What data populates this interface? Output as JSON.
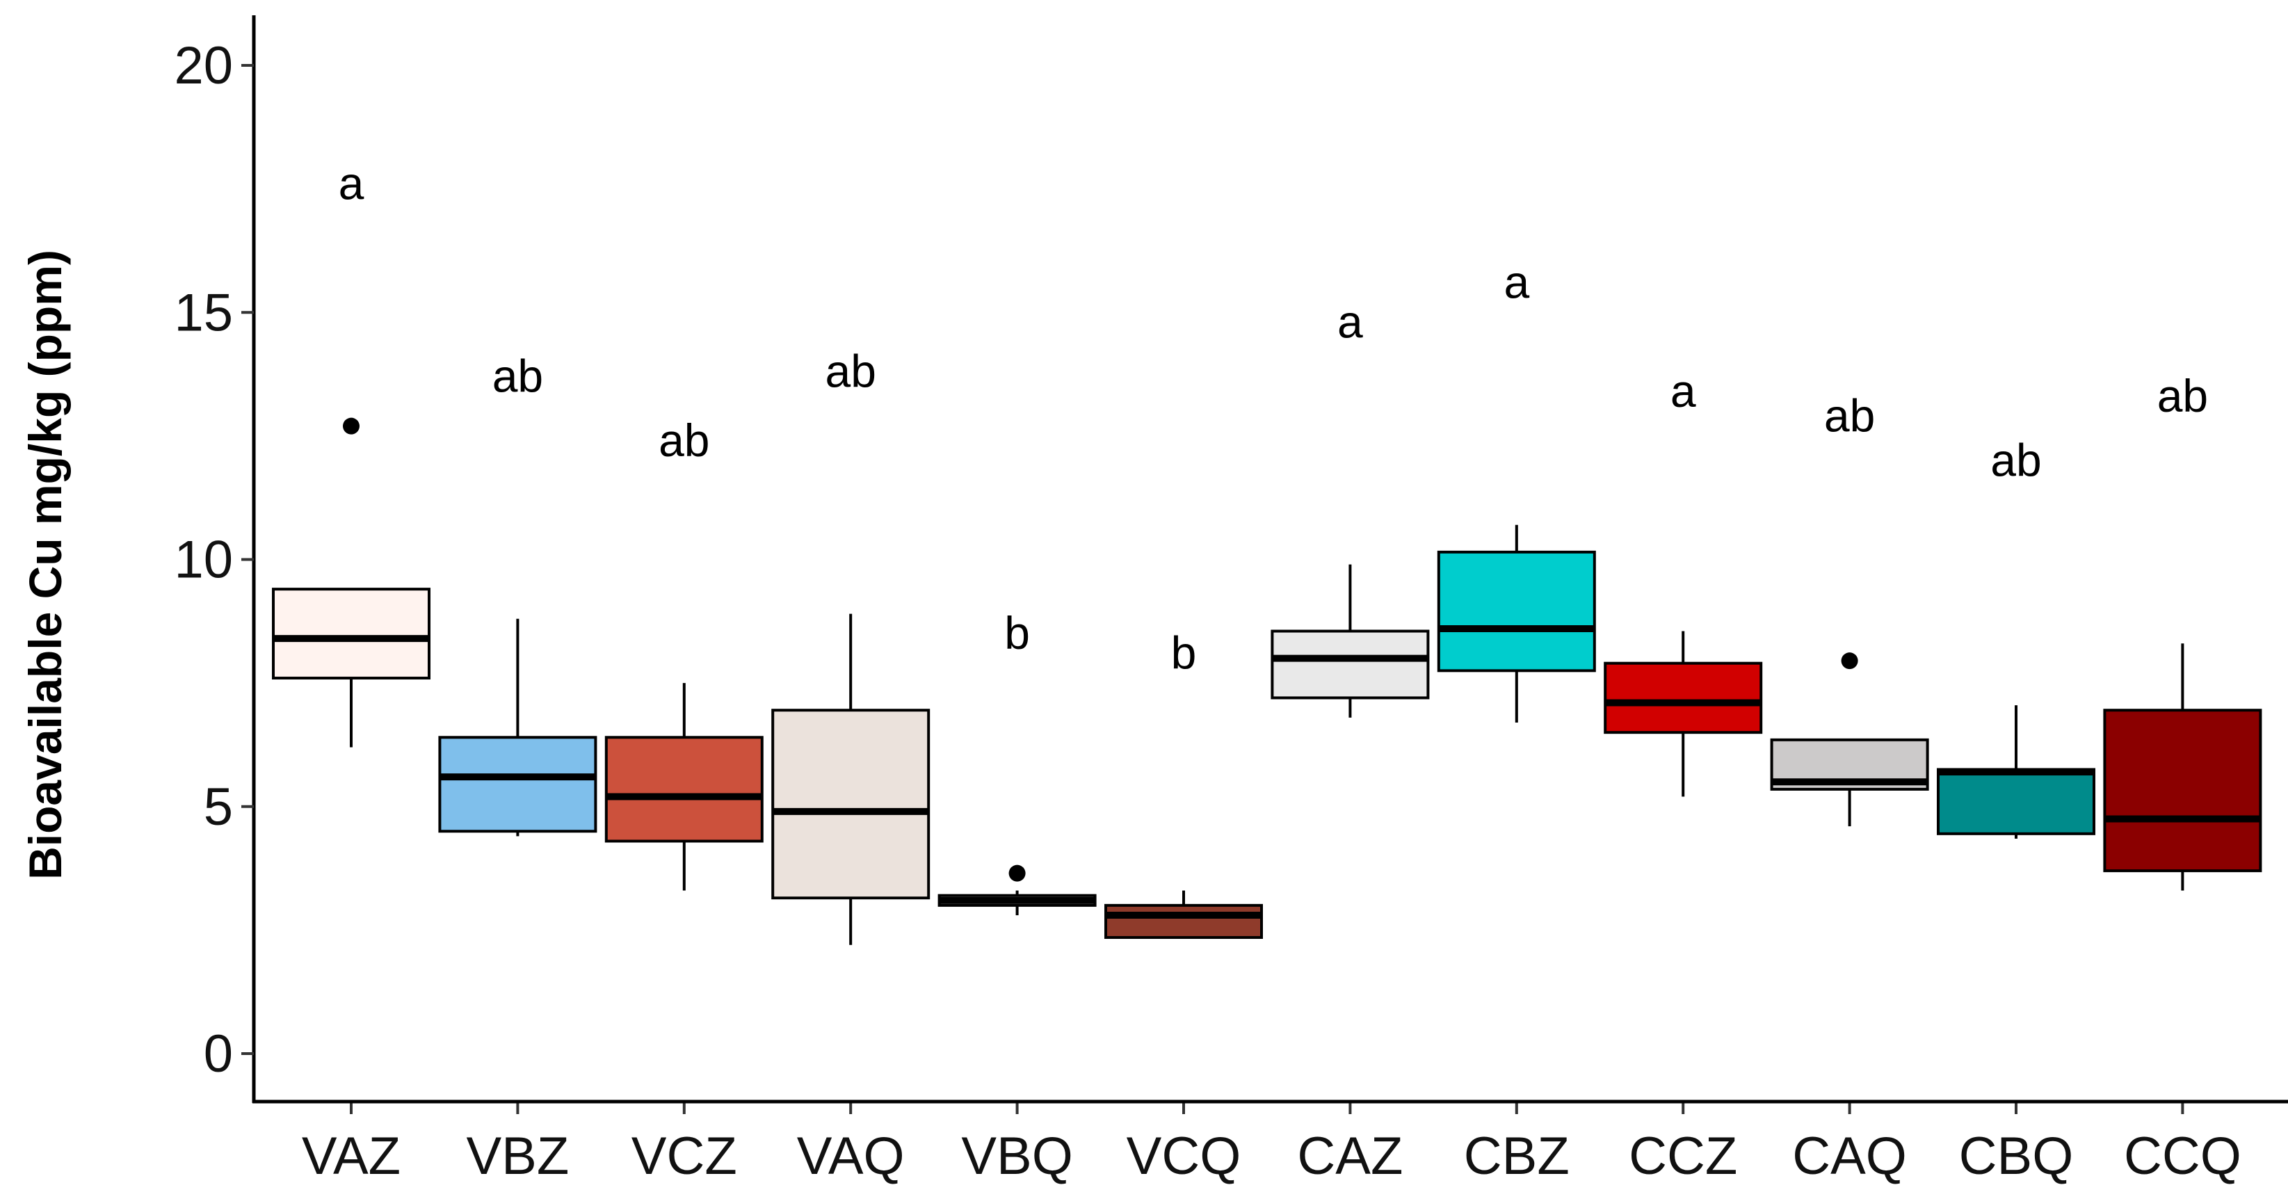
{
  "chart_data": {
    "type": "boxplot",
    "title": "",
    "xlabel": "",
    "ylabel": "Bioavailable Cu mg/kg (ppm)",
    "ylim": [
      0,
      20
    ],
    "yticks": [
      0,
      5,
      10,
      15,
      20
    ],
    "grid": false,
    "legend": "none",
    "categories": [
      "VAZ",
      "VBZ",
      "VCZ",
      "VAQ",
      "VBQ",
      "VCQ",
      "CAZ",
      "CBZ",
      "CCZ",
      "CAQ",
      "CBQ",
      "CCQ"
    ],
    "boxes": [
      {
        "category": "VAZ",
        "whisker_low": 6.2,
        "q1": 7.6,
        "median": 8.4,
        "q3": 9.4,
        "whisker_high": 9.4,
        "outliers": [
          12.7
        ],
        "letter": "a",
        "letter_y": 17.6,
        "color": "#FFF3EF"
      },
      {
        "category": "VBZ",
        "whisker_low": 4.4,
        "q1": 4.5,
        "median": 5.6,
        "q3": 6.4,
        "whisker_high": 8.8,
        "outliers": [],
        "letter": "ab",
        "letter_y": 13.7,
        "color": "#7FBFEB"
      },
      {
        "category": "VCZ",
        "whisker_low": 3.3,
        "q1": 4.3,
        "median": 5.2,
        "q3": 6.4,
        "whisker_high": 7.5,
        "outliers": [],
        "letter": "ab",
        "letter_y": 12.4,
        "color": "#CC513C"
      },
      {
        "category": "VAQ",
        "whisker_low": 2.2,
        "q1": 3.15,
        "median": 4.9,
        "q3": 6.95,
        "whisker_high": 8.9,
        "outliers": [],
        "letter": "ab",
        "letter_y": 13.8,
        "color": "#EBE2DC"
      },
      {
        "category": "VBQ",
        "whisker_low": 2.8,
        "q1": 3.0,
        "median": 3.1,
        "q3": 3.2,
        "whisker_high": 3.3,
        "outliers": [
          3.65
        ],
        "letter": "b",
        "letter_y": 8.5,
        "color": "#D5D5D5"
      },
      {
        "category": "VCQ",
        "whisker_low": 2.35,
        "q1": 2.35,
        "median": 2.8,
        "q3": 3.0,
        "whisker_high": 3.3,
        "outliers": [],
        "letter": "b",
        "letter_y": 8.1,
        "color": "#8F3B2B"
      },
      {
        "category": "CAZ",
        "whisker_low": 6.8,
        "q1": 7.2,
        "median": 8.0,
        "q3": 8.55,
        "whisker_high": 9.9,
        "outliers": [],
        "letter": "a",
        "letter_y": 14.8,
        "color": "#E9E9E9"
      },
      {
        "category": "CBZ",
        "whisker_low": 6.7,
        "q1": 7.75,
        "median": 8.6,
        "q3": 10.15,
        "whisker_high": 10.7,
        "outliers": [],
        "letter": "a",
        "letter_y": 15.6,
        "color": "#00CDCD"
      },
      {
        "category": "CCZ",
        "whisker_low": 5.2,
        "q1": 6.5,
        "median": 7.1,
        "q3": 7.9,
        "whisker_high": 8.55,
        "outliers": [],
        "letter": "a",
        "letter_y": 13.4,
        "color": "#D10000"
      },
      {
        "category": "CAQ",
        "whisker_low": 4.6,
        "q1": 5.35,
        "median": 5.5,
        "q3": 6.35,
        "whisker_high": 6.35,
        "outliers": [
          7.95
        ],
        "letter": "ab",
        "letter_y": 12.9,
        "color": "#CCCACA"
      },
      {
        "category": "CBQ",
        "whisker_low": 4.35,
        "q1": 4.45,
        "median": 5.7,
        "q3": 5.75,
        "whisker_high": 7.05,
        "outliers": [],
        "letter": "ab",
        "letter_y": 12.0,
        "color": "#008B8B"
      },
      {
        "category": "CCQ",
        "whisker_low": 3.3,
        "q1": 3.7,
        "median": 4.75,
        "q3": 6.95,
        "whisker_high": 8.3,
        "outliers": [],
        "letter": "ab",
        "letter_y": 13.3,
        "color": "#8B0000"
      }
    ]
  }
}
